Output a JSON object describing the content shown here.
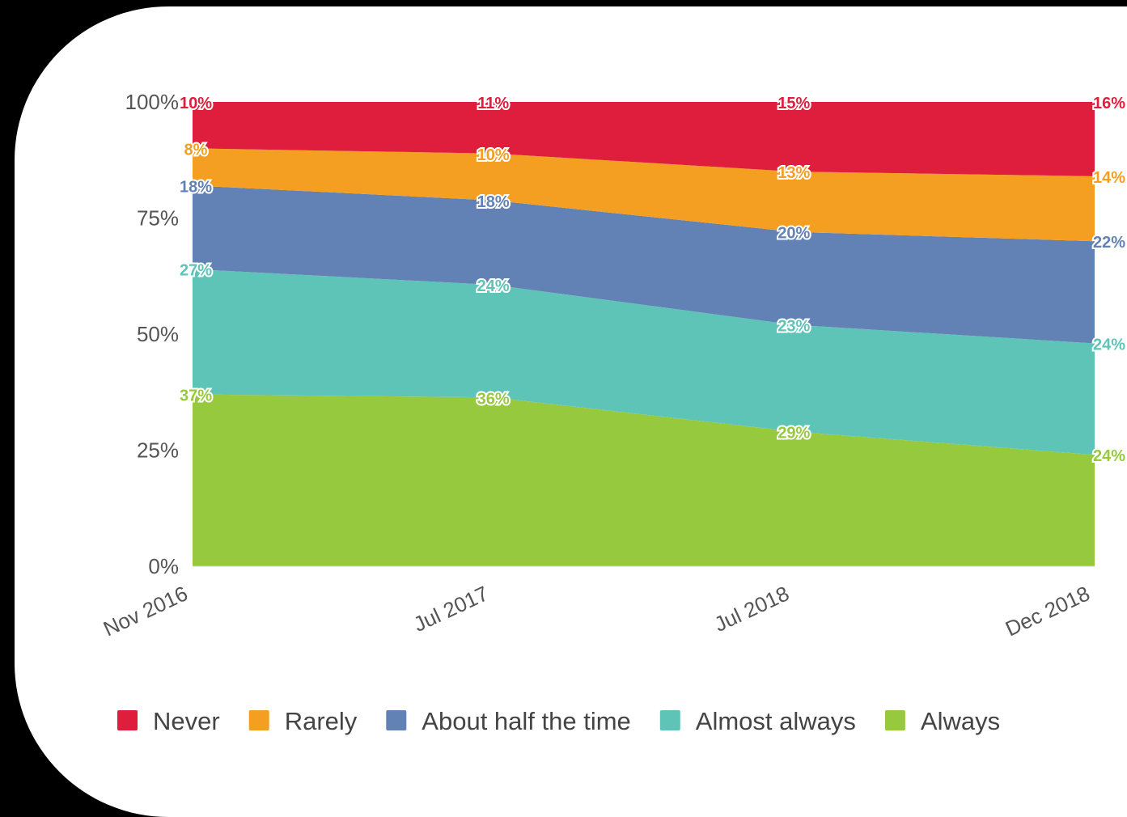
{
  "chart_data": {
    "type": "area",
    "stacked": true,
    "percent": true,
    "categories": [
      "Nov 2016",
      "Jul 2017",
      "Jul 2018",
      "Dec 2018"
    ],
    "y_ticks": [
      "0%",
      "25%",
      "50%",
      "75%",
      "100%"
    ],
    "ylim": [
      0,
      100
    ],
    "legend_position": "bottom",
    "series": [
      {
        "name": "Always",
        "color": "#97c93e",
        "values": [
          37,
          36,
          29,
          24
        ],
        "labels": [
          "37%",
          "36%",
          "29%",
          "24%"
        ]
      },
      {
        "name": "Almost always",
        "color": "#5ec4b8",
        "values": [
          27,
          24,
          23,
          24
        ],
        "labels": [
          "27%",
          "24%",
          "23%",
          "24%"
        ]
      },
      {
        "name": "About half the time",
        "color": "#6281b5",
        "values": [
          18,
          18,
          20,
          22
        ],
        "labels": [
          "18%",
          "18%",
          "20%",
          "22%"
        ]
      },
      {
        "name": "Rarely",
        "color": "#f49e22",
        "values": [
          8,
          10,
          13,
          14
        ],
        "labels": [
          "8%",
          "10%",
          "13%",
          "14%"
        ]
      },
      {
        "name": "Never",
        "color": "#de1e3c",
        "values": [
          10,
          11,
          15,
          16
        ],
        "labels": [
          "10%",
          "11%",
          "15%",
          "16%"
        ]
      }
    ],
    "legend_order": [
      "Never",
      "Rarely",
      "About half the time",
      "Almost always",
      "Always"
    ]
  }
}
